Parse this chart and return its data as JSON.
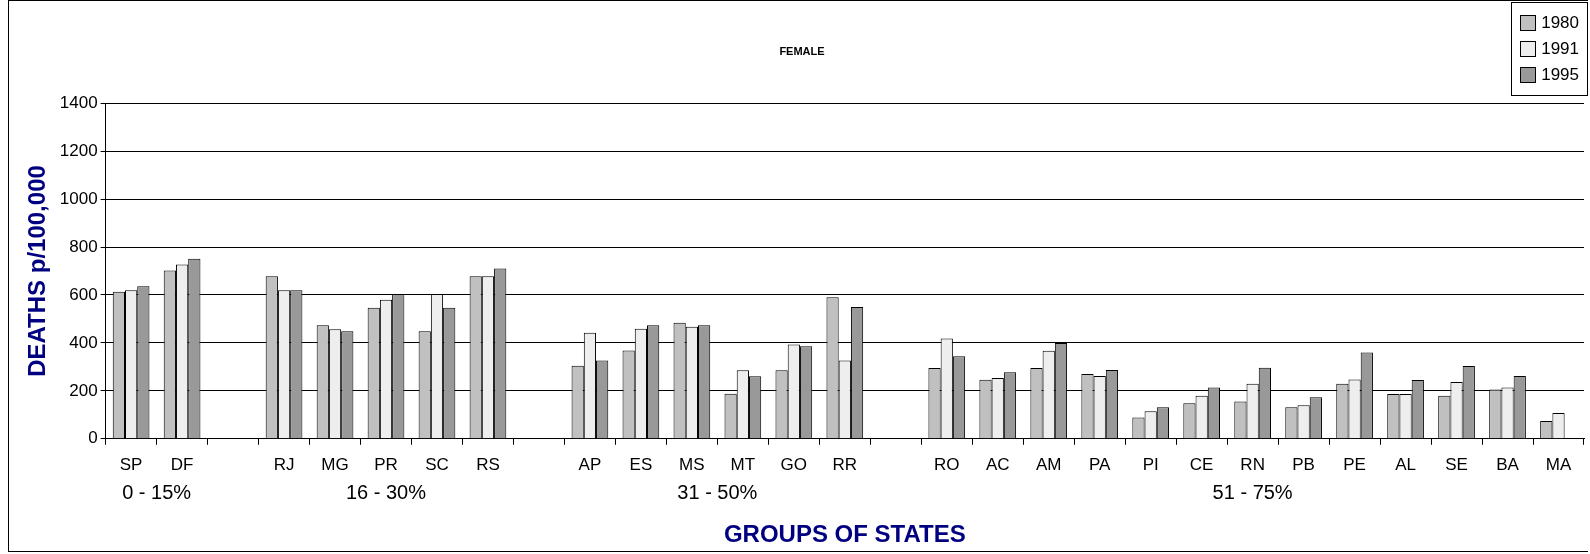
{
  "chart_data": {
    "type": "bar",
    "title": "FEMALE",
    "xlabel": "GROUPS OF STATES",
    "ylabel": "DEATHS p/100,000",
    "categories": [
      "SP",
      "DF",
      null,
      "RJ",
      "MG",
      "PR",
      "SC",
      "RS",
      null,
      "AP",
      "ES",
      "MS",
      "MT",
      "GO",
      "RR",
      null,
      "RO",
      "AC",
      "AM",
      "PA",
      "PI",
      "CE",
      "RN",
      "PB",
      "PE",
      "AL",
      "SE",
      "BA",
      "MA"
    ],
    "series": [
      {
        "name": "1980",
        "color": "#c0c0c0",
        "values": [
          613,
          702,
          null,
          678,
          474,
          547,
          449,
          678,
          null,
          305,
          368,
          484,
          188,
          286,
          591,
          null,
          295,
          246,
          295,
          270,
          89,
          148,
          156,
          132,
          230,
          187,
          180,
          206,
          74
        ]
      },
      {
        "name": "1991",
        "color": "#eeeeee",
        "values": [
          620,
          727,
          null,
          620,
          457,
          580,
          604,
          678,
          null,
          442,
          459,
          467,
          286,
          393,
          327,
          null,
          418,
          254,
          367,
          262,
          115,
          180,
          230,
          140,
          247,
          187,
          237,
          214,
          108
        ]
      },
      {
        "name": "1995",
        "color": "#999999",
        "values": [
          636,
          751,
          null,
          620,
          449,
          604,
          547,
          710,
          null,
          327,
          474,
          474,
          261,
          386,
          550,
          null,
          344,
          278,
          400,
          287,
          132,
          214,
          296,
          173,
          360,
          245,
          304,
          262,
          null
        ]
      }
    ],
    "annotations": [
      "0 - 15%",
      "16 - 30%",
      "31 - 50%",
      "51 - 75%"
    ],
    "ylim": [
      0,
      1400
    ],
    "yticks": [
      0,
      200,
      400,
      600,
      800,
      1000,
      1200,
      1400
    ],
    "grid": "y",
    "legend": "top right"
  }
}
